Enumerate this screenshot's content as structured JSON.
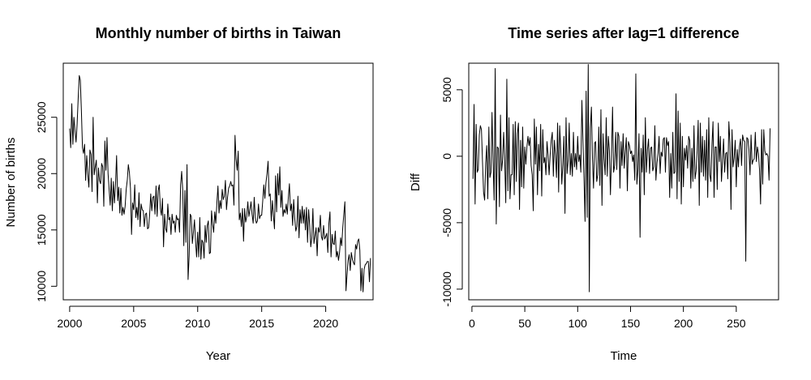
{
  "chart_data": [
    {
      "type": "line",
      "title": "Monthly number of births in Taiwan",
      "xlabel": "Year",
      "ylabel": "Number of births",
      "xlim": [
        1999.5,
        2023.7
      ],
      "ylim": [
        8800,
        29800
      ],
      "xticks": [
        2000,
        2005,
        2010,
        2015,
        2020
      ],
      "yticks": [
        10000,
        15000,
        20000,
        25000
      ],
      "grid": false,
      "legend": "none",
      "line_color": "#000000",
      "series": [
        {
          "x_start": 2000,
          "x_step": 0.083333,
          "values": [
            24000,
            22300,
            26200,
            22600,
            25000,
            23800,
            22800,
            24400,
            26700,
            28700,
            28300,
            25600,
            22300,
            21800,
            22600,
            19400,
            21600,
            20000,
            18800,
            22100,
            21700,
            18400,
            25000,
            19900,
            20600,
            21200,
            17400,
            20500,
            19400,
            19100,
            20900,
            20600,
            17100,
            22900,
            20300,
            23200,
            20000,
            18600,
            17200,
            19600,
            16700,
            19300,
            17400,
            19100,
            21600,
            17600,
            18800,
            16500,
            18700,
            16300,
            17000,
            16400,
            17100,
            18600,
            19400,
            20800,
            20100,
            18700,
            14600,
            17400,
            16800,
            19000,
            16100,
            17000,
            15900,
            18300,
            15300,
            17300,
            16800,
            16700,
            15300,
            16400,
            16500,
            15100,
            15200,
            16400,
            18200,
            16700,
            17900,
            18000,
            16400,
            18900,
            16200,
            18500,
            19000,
            16900,
            16300,
            17800,
            13500,
            16400,
            15100,
            14800,
            17300,
            15900,
            16100,
            14600,
            16400,
            15600,
            15800,
            14800,
            16300,
            15900,
            16000,
            14800,
            19000,
            20200,
            18500,
            13600,
            18500,
            13900,
            20800,
            10600,
            12700,
            16400,
            16200,
            13800,
            14800,
            15900,
            14000,
            12600,
            14800,
            12600,
            16100,
            12400,
            14100,
            13900,
            12500,
            15400,
            13900,
            15400,
            15800,
            12900,
            13000,
            16700,
            15500,
            14800,
            16600,
            15600,
            17400,
            18900,
            16500,
            17600,
            16900,
            18600,
            17700,
            18000,
            19400,
            16800,
            17900,
            18700,
            18900,
            19300,
            18900,
            19000,
            17200,
            23400,
            21300,
            20300,
            22000,
            15900,
            16500,
            15300,
            16900,
            14000,
            16900,
            15700,
            16200,
            17500,
            16200,
            16800,
            17500,
            16400,
            15600,
            17900,
            16100,
            15600,
            15800,
            17300,
            16000,
            16300,
            16300,
            17600,
            19000,
            17800,
            19200,
            20000,
            21100,
            18000,
            18200,
            15800,
            17600,
            16300,
            15100,
            19800,
            16600,
            20000,
            18100,
            20600,
            17000,
            18500,
            16200,
            16800,
            16500,
            17300,
            16400,
            17900,
            19100,
            16700,
            17300,
            15400,
            17700,
            16000,
            14900,
            15300,
            18000,
            14300,
            16800,
            15600,
            17100,
            15600,
            16800,
            15000,
            17000,
            13900,
            16800,
            15400,
            13500,
            14300,
            16900,
            13800,
            14500,
            15200,
            12700,
            15200,
            14800,
            16300,
            14400,
            14100,
            15400,
            14200,
            14400,
            14700,
            13000,
            15600,
            16600,
            12600,
            14600,
            13800,
            13700,
            14900,
            12600,
            13100,
            12300,
            13000,
            14300,
            13600,
            15200,
            16400,
            17500,
            9600,
            11000,
            12300,
            12800,
            11400,
            13000,
            12400,
            12100,
            11900,
            13700,
            13300,
            14000,
            14200,
            13200,
            9600,
            11600,
            9500,
            11500,
            11900,
            12000,
            12200,
            12200,
            10400,
            12500
          ]
        }
      ]
    },
    {
      "type": "line",
      "title": "Time series after lag=1 difference",
      "xlabel": "Time",
      "ylabel": "Diff",
      "xlim": [
        -3,
        290
      ],
      "ylim": [
        -10800,
        7000
      ],
      "xticks": [
        0,
        50,
        100,
        150,
        200,
        250
      ],
      "yticks": [
        -10000,
        -5000,
        0,
        5000
      ],
      "grid": false,
      "legend": "none",
      "line_color": "#000000",
      "series": [
        {
          "x_start": 1,
          "x_step": 1,
          "values": [
            -1700,
            3900,
            -3600,
            2400,
            -1200,
            -1000,
            1600,
            2300,
            2000,
            -400,
            -2700,
            -3300,
            -500,
            800,
            -3200,
            2200,
            -1600,
            -1200,
            3300,
            -400,
            -3300,
            6600,
            -5100,
            700,
            600,
            -3800,
            3100,
            -1100,
            -300,
            1800,
            -300,
            -3500,
            5800,
            -2600,
            2900,
            -3200,
            -1400,
            -1400,
            2400,
            -2900,
            2600,
            -1900,
            1700,
            2500,
            -4000,
            1200,
            -2300,
            2200,
            -2400,
            700,
            -600,
            700,
            1500,
            800,
            1400,
            -700,
            -1400,
            -4100,
            2800,
            -600,
            2200,
            -2900,
            900,
            -1100,
            2400,
            -3000,
            2000,
            -500,
            -100,
            -1400,
            1100,
            100,
            -1400,
            100,
            1200,
            1800,
            -1500,
            1200,
            100,
            -1600,
            2500,
            -2700,
            2300,
            500,
            -2100,
            -600,
            1500,
            -4300,
            2900,
            -1300,
            -300,
            2500,
            -1400,
            200,
            -1500,
            1800,
            -800,
            200,
            -1000,
            1500,
            -400,
            100,
            -1200,
            4200,
            1200,
            -1700,
            -4900,
            4900,
            -4600,
            6900,
            -10200,
            2100,
            3700,
            -200,
            -2400,
            1000,
            1100,
            -1900,
            -1400,
            2200,
            -2200,
            3500,
            -3700,
            1700,
            -200,
            -1400,
            2900,
            -1500,
            1500,
            400,
            -2900,
            100,
            3700,
            -1200,
            -700,
            1800,
            -1000,
            1800,
            1500,
            -2400,
            1100,
            -700,
            1700,
            -900,
            300,
            1400,
            -2600,
            1100,
            800,
            200,
            400,
            -400,
            100,
            -1800,
            6200,
            -2100,
            -1000,
            1700,
            -6100,
            600,
            -1200,
            1600,
            -2900,
            2900,
            -1200,
            500,
            1300,
            -1300,
            600,
            700,
            -1100,
            -800,
            2300,
            -1800,
            -500,
            200,
            1500,
            -1300,
            300,
            0,
            1300,
            1400,
            -1200,
            1400,
            800,
            1100,
            -3100,
            200,
            -2400,
            1800,
            -1300,
            -1200,
            4700,
            -3200,
            3400,
            -1900,
            2500,
            -3600,
            1500,
            -2300,
            600,
            -300,
            800,
            -900,
            1500,
            1200,
            -2400,
            600,
            -1900,
            2300,
            -1700,
            -1100,
            400,
            2700,
            -3700,
            2500,
            -1200,
            1500,
            -1500,
            1200,
            -1800,
            2000,
            -3100,
            2900,
            -1400,
            -1900,
            800,
            2600,
            -3100,
            700,
            700,
            -2500,
            2500,
            -400,
            1500,
            -1900,
            -300,
            1300,
            -1200,
            200,
            300,
            -1700,
            2600,
            1000,
            -4000,
            2000,
            -800,
            -100,
            1200,
            -2300,
            500,
            -800,
            700,
            1300,
            -700,
            1600,
            1200,
            1100,
            -7900,
            1400,
            1300,
            500,
            -1400,
            1600,
            -600,
            -300,
            -200,
            1800,
            -400,
            700,
            200,
            -1000,
            -3600,
            2000,
            -2100,
            2000,
            400,
            100,
            200,
            0,
            -1800,
            2100
          ]
        }
      ]
    }
  ]
}
